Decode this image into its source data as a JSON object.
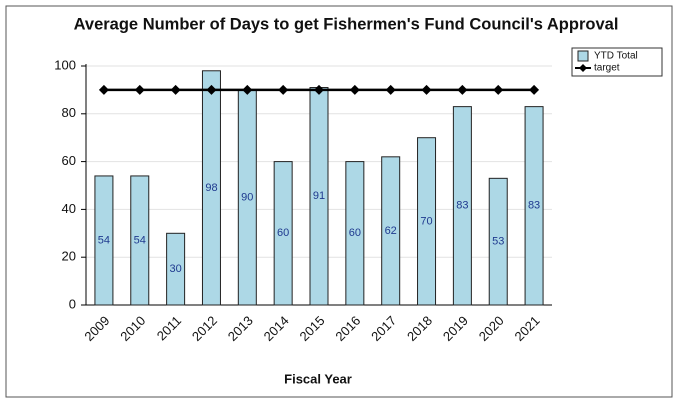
{
  "chart_data": {
    "type": "bar",
    "title": "Average Number of Days to get Fishermen's Fund Council's Approval",
    "x_label": "Fiscal Year",
    "categories": [
      "2009",
      "2010",
      "2011",
      "2012",
      "2013",
      "2014",
      "2015",
      "2016",
      "2017",
      "2018",
      "2019",
      "2020",
      "2021"
    ],
    "series": [
      {
        "name": "YTD Total",
        "type": "bar",
        "color": "#add8e6",
        "values": [
          54,
          54,
          30,
          98,
          90,
          60,
          91,
          60,
          62,
          70,
          83,
          53,
          83
        ]
      },
      {
        "name": "target",
        "type": "line",
        "color": "#000000",
        "values": [
          90,
          90,
          90,
          90,
          90,
          90,
          90,
          90,
          90,
          90,
          90,
          90,
          90
        ]
      }
    ],
    "ylim": [
      0,
      100
    ],
    "yticks": [
      0,
      20,
      40,
      60,
      80,
      100
    ],
    "grid": true,
    "legend": "upper right"
  }
}
